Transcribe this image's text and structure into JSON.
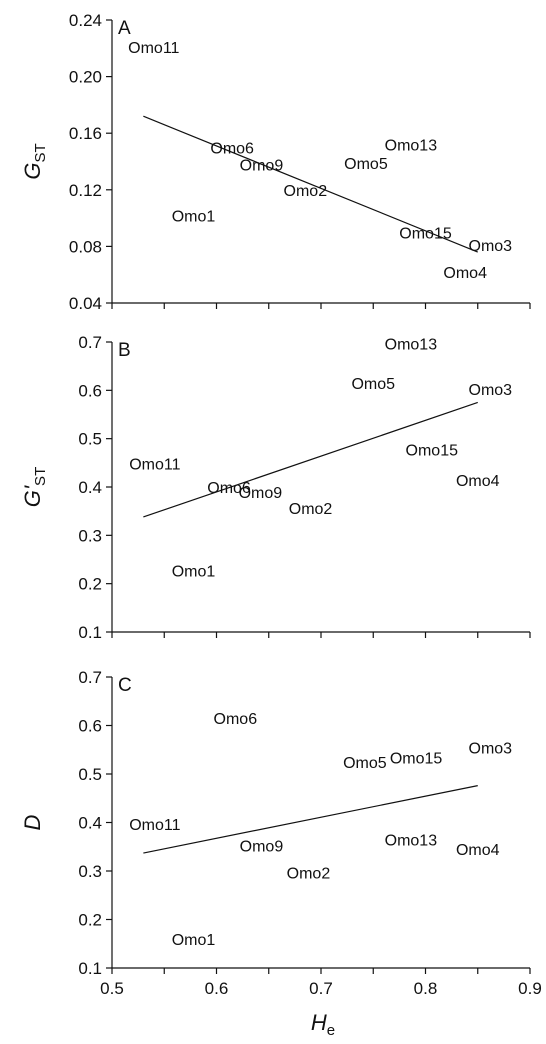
{
  "chart_data": [
    {
      "panel": "A",
      "type": "scatter",
      "ylabel": "G",
      "ylabel_sub": "ST",
      "ylim": [
        0.04,
        0.24
      ],
      "yticks": [
        "0.04",
        "0.08",
        "0.12",
        "0.16",
        "0.20",
        "0.24"
      ],
      "xlim": [
        0.5,
        0.9
      ],
      "points": [
        {
          "label": "Omo11",
          "x": 0.54,
          "y": 0.221
        },
        {
          "label": "Omo6",
          "x": 0.615,
          "y": 0.15
        },
        {
          "label": "Omo9",
          "x": 0.643,
          "y": 0.138
        },
        {
          "label": "Omo2",
          "x": 0.685,
          "y": 0.12
        },
        {
          "label": "Omo1",
          "x": 0.578,
          "y": 0.102
        },
        {
          "label": "Omo13",
          "x": 0.786,
          "y": 0.152
        },
        {
          "label": "Omo5",
          "x": 0.743,
          "y": 0.139
        },
        {
          "label": "Omo15",
          "x": 0.8,
          "y": 0.09
        },
        {
          "label": "Omo3",
          "x": 0.862,
          "y": 0.081
        },
        {
          "label": "Omo4",
          "x": 0.838,
          "y": 0.062
        }
      ],
      "trendline": {
        "x": [
          0.53,
          0.85
        ],
        "y": [
          0.172,
          0.076
        ]
      }
    },
    {
      "panel": "B",
      "type": "scatter",
      "ylabel": "G'",
      "ylabel_sub": "ST",
      "ylim": [
        0.1,
        0.7
      ],
      "yticks": [
        "0.1",
        "0.2",
        "0.3",
        "0.4",
        "0.5",
        "0.6",
        "0.7"
      ],
      "xlim": [
        0.5,
        0.9
      ],
      "points": [
        {
          "label": "Omo13",
          "x": 0.786,
          "y": 0.697
        },
        {
          "label": "Omo5",
          "x": 0.75,
          "y": 0.615
        },
        {
          "label": "Omo3",
          "x": 0.862,
          "y": 0.603
        },
        {
          "label": "Omo15",
          "x": 0.806,
          "y": 0.478
        },
        {
          "label": "Omo11",
          "x": 0.541,
          "y": 0.449
        },
        {
          "label": "Omo4",
          "x": 0.85,
          "y": 0.414
        },
        {
          "label": "Omo6",
          "x": 0.612,
          "y": 0.4
        },
        {
          "label": "Omo9",
          "x": 0.642,
          "y": 0.39
        },
        {
          "label": "Omo2",
          "x": 0.69,
          "y": 0.357
        },
        {
          "label": "Omo1",
          "x": 0.578,
          "y": 0.227
        }
      ],
      "trendline": {
        "x": [
          0.53,
          0.85
        ],
        "y": [
          0.338,
          0.575
        ]
      }
    },
    {
      "panel": "C",
      "type": "scatter",
      "ylabel": "D",
      "ylabel_sub": "",
      "ylim": [
        0.1,
        0.7
      ],
      "yticks": [
        "0.1",
        "0.2",
        "0.3",
        "0.4",
        "0.5",
        "0.6",
        "0.7"
      ],
      "xlim": [
        0.5,
        0.9
      ],
      "xticks": [
        "0.5",
        "0.6",
        "0.7",
        "0.8",
        "0.9"
      ],
      "xlabel": "H",
      "xlabel_sub": "e",
      "points": [
        {
          "label": "Omo6",
          "x": 0.618,
          "y": 0.615
        },
        {
          "label": "Omo3",
          "x": 0.862,
          "y": 0.555
        },
        {
          "label": "Omo15",
          "x": 0.791,
          "y": 0.534
        },
        {
          "label": "Omo5",
          "x": 0.742,
          "y": 0.525
        },
        {
          "label": "Omo11",
          "x": 0.541,
          "y": 0.397
        },
        {
          "label": "Omo13",
          "x": 0.786,
          "y": 0.365
        },
        {
          "label": "Omo9",
          "x": 0.643,
          "y": 0.353
        },
        {
          "label": "Omo4",
          "x": 0.85,
          "y": 0.345
        },
        {
          "label": "Omo2",
          "x": 0.688,
          "y": 0.297
        },
        {
          "label": "Omo1",
          "x": 0.578,
          "y": 0.16
        }
      ],
      "trendline": {
        "x": [
          0.53,
          0.85
        ],
        "y": [
          0.337,
          0.476
        ]
      }
    }
  ]
}
